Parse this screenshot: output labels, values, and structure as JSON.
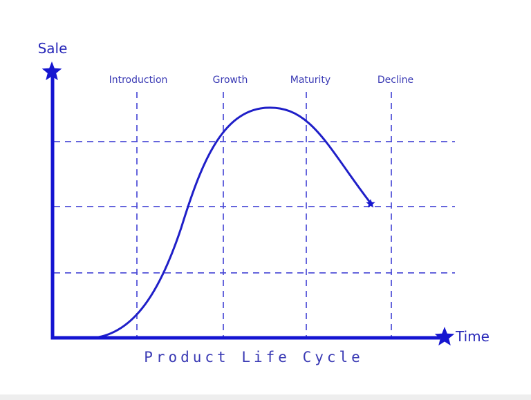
{
  "y_axis_label": "Sale",
  "x_axis_label": "Time",
  "caption": "Product Life Cycle",
  "stages": [
    "Introduction",
    "Growth",
    "Maturity",
    "Decline"
  ],
  "colors": {
    "axis": "#1414d2",
    "curve": "#1f1fc8",
    "grid": "#4a4ad6",
    "text": "#3a3ab4"
  },
  "icons": {
    "y_axis_end": "star-icon",
    "x_axis_end": "star-icon",
    "curve_end": "star-icon"
  }
}
